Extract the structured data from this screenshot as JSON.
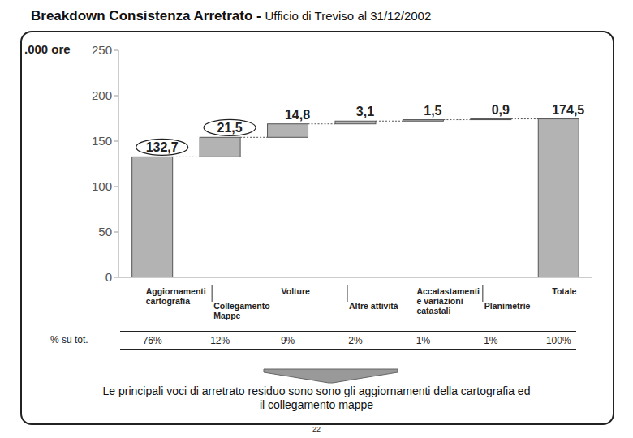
{
  "chart_data": {
    "type": "waterfall",
    "title": "Breakdown Consistenza Arretrato -",
    "subtitle": "Ufficio di Treviso al 31/12/2002",
    "y_label": ".000 ore",
    "categories": [
      "Aggiornamenti cartografia",
      "Collegamento Mappe",
      "Volture",
      "Altre attività",
      "Accatastamenti e variazioni catastali",
      "Planimetrie",
      "Totale"
    ],
    "values": [
      132.7,
      21.5,
      14.8,
      3.1,
      1.5,
      0.9,
      174.5
    ],
    "value_labels": [
      "132,7",
      "21,5",
      "14,8",
      "3,1",
      "1,5",
      "0,9",
      "174,5"
    ],
    "color": "#b3b3b3",
    "ylim": [
      0,
      250
    ],
    "yticks": [
      0,
      50,
      100,
      150,
      200,
      250
    ],
    "grid": false,
    "data_labels": true,
    "percent_row": {
      "label": "% su tot.",
      "values": [
        "76%",
        "12%",
        "9%",
        "2%",
        "1%",
        "1%",
        "100%"
      ]
    },
    "footer": "Le principali voci di arretrato residuo sono sono gli aggiornamenti della cartografia ed il collegamento mappe",
    "page_number": "22"
  }
}
